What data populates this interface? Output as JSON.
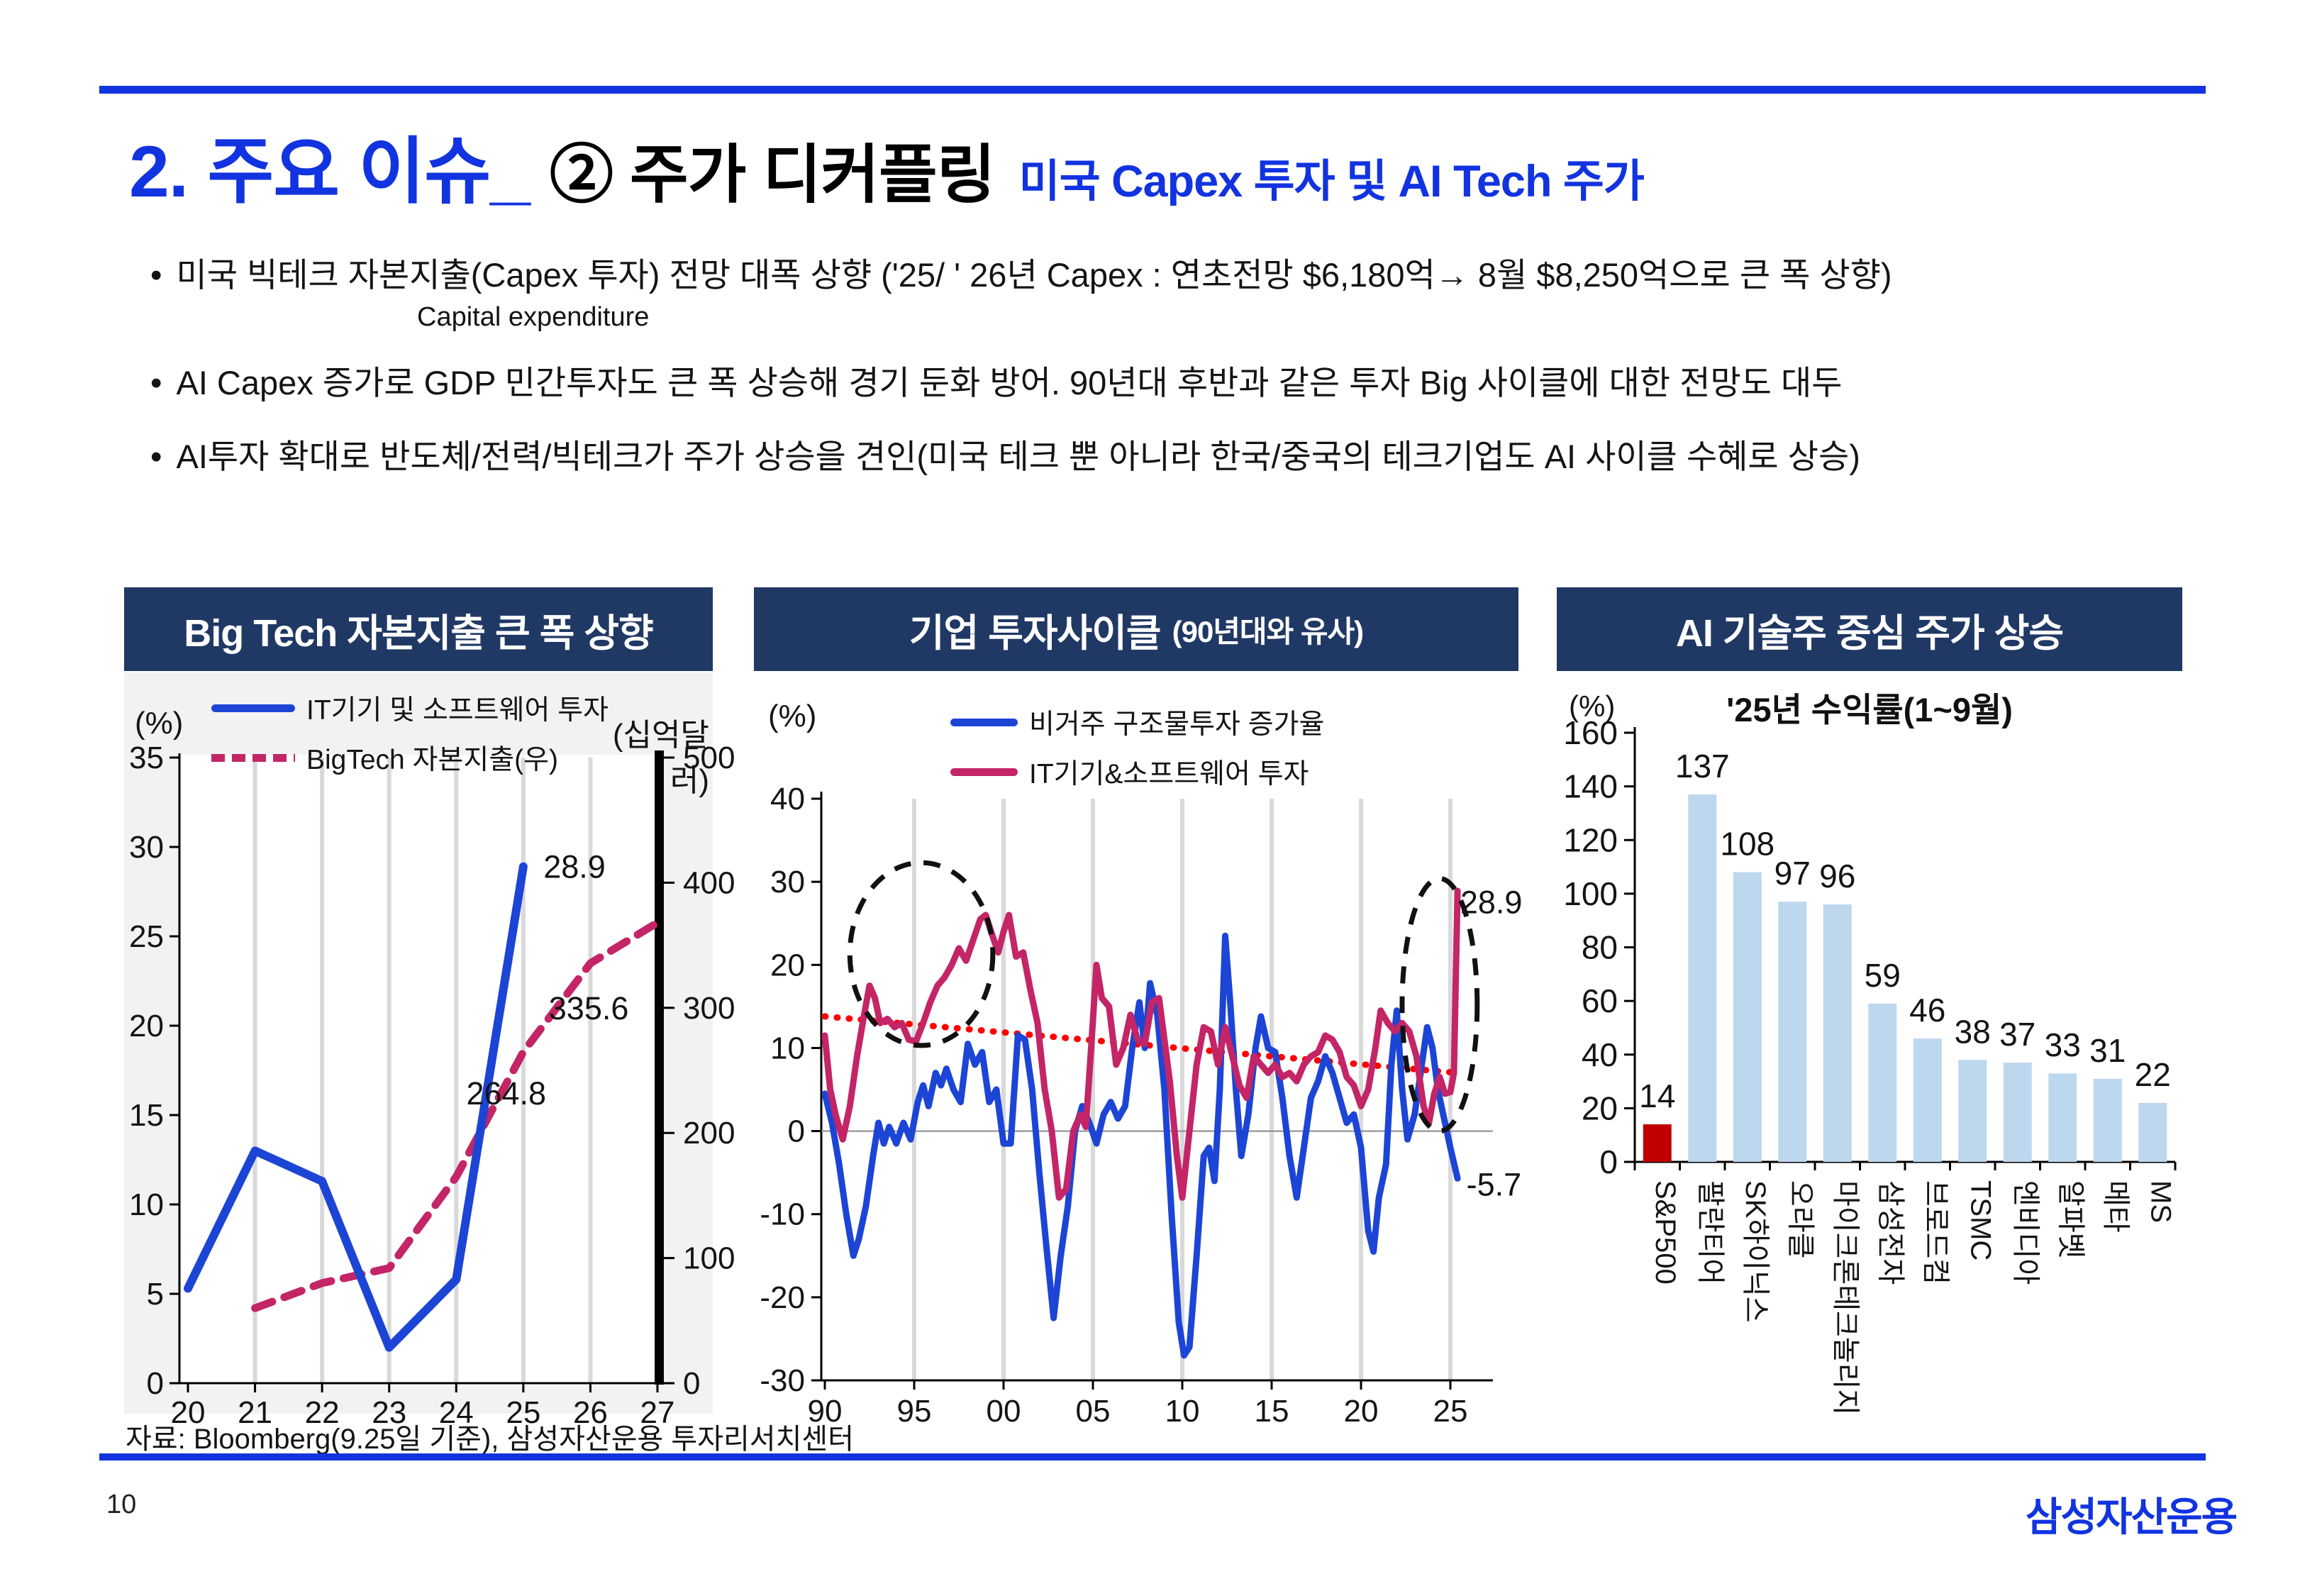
{
  "slide": {
    "title_main": "2. 주요 이슈_",
    "title_sub": "② 주가 디커플링",
    "title_note": "미국 Capex 투자  및 AI Tech 주가",
    "bullets": [
      "미국 빅테크 자본지출(Capex 투자) 전망 대폭 상향 ('25/ ' 26년 Capex : 연초전망 $6,180억→ 8월 $8,250억으로 큰 폭 상향)",
      "AI Capex 증가로 GDP 민간투자도 큰 폭 상승해 경기 둔화 방어. 90년대 후반과 같은 투자 Big 사이클에 대한 전망도 대두",
      "AI투자 확대로 반도체/전력/빅테크가 주가 상승을 견인(미국 테크 뿐 아니라 한국/중국의 테크기업도 AI 사이클 수혜로 상승)"
    ],
    "capex_note": "Capital expenditure",
    "source": "자료: Bloomberg(9.25일 기준), 삼성자산운용 투자리서치센터",
    "page_number": "10",
    "logo": "삼성자산운용"
  },
  "colors": {
    "accent_blue": "#1133e0",
    "header_navy": "#203864",
    "line_blue": "#1c45d6",
    "line_pink": "#c32566",
    "trend_red": "#ff0000",
    "bar_red": "#c00000",
    "bar_blue": "#bdd7ee",
    "gridline": "#d9d9d9",
    "panel_gray": "#f2f2f2"
  },
  "chart_data": [
    {
      "type": "line",
      "panel_title": "Big Tech 자본지출 큰 폭 상향",
      "left_axis_label": "(%)",
      "right_axis_label": "(십억달러)",
      "xlim": [
        20,
        27
      ],
      "x_tick_labels": [
        "20",
        "21",
        "22",
        "23",
        "24",
        "25",
        "26",
        "27"
      ],
      "x_tick_values": [
        20,
        21,
        22,
        23,
        24,
        25,
        26,
        27
      ],
      "gridline_x": [
        21,
        22,
        23,
        24,
        25,
        26
      ],
      "ylim_left": [
        0,
        35
      ],
      "yticks_left": [
        0,
        5,
        10,
        15,
        20,
        25,
        30,
        35
      ],
      "ylim_right": [
        0,
        500
      ],
      "yticks_right": [
        0,
        100,
        200,
        300,
        400,
        500
      ],
      "series": [
        {
          "name": "IT기기 및 소프트웨어 투자",
          "axis": "left",
          "style": "solid",
          "color": "#1c45d6",
          "points": [
            [
              20,
              5.3
            ],
            [
              21,
              13.0
            ],
            [
              22,
              11.3
            ],
            [
              23,
              2.0
            ],
            [
              24,
              5.8
            ],
            [
              25,
              28.9
            ]
          ]
        },
        {
          "name": "BigTech 자본지출(우)",
          "axis": "right",
          "style": "dashed",
          "color": "#c32566",
          "points": [
            [
              21,
              60
            ],
            [
              22,
              80
            ],
            [
              23,
              92
            ],
            [
              24,
              165
            ],
            [
              25,
              264.8
            ],
            [
              26,
              335.6
            ],
            [
              27,
              368
            ]
          ]
        }
      ],
      "annotations": [
        {
          "text": "28.9",
          "x": 25.3,
          "y": 28.9,
          "axis": "left"
        },
        {
          "text": "335.6",
          "x": 25.38,
          "y": 300,
          "axis": "right"
        },
        {
          "text": "264.8",
          "x": 24.15,
          "y": 232,
          "axis": "right"
        }
      ]
    },
    {
      "type": "line",
      "panel_title": "기업 투자사이클",
      "panel_title_sub": "(90년대와 유사)",
      "left_axis_label": "(%)",
      "xlim": [
        1990,
        2027.3
      ],
      "x_tick_labels": [
        "90",
        "95",
        "00",
        "05",
        "10",
        "15",
        "20",
        "25"
      ],
      "x_tick_values": [
        1990,
        1995,
        2000,
        2005,
        2010,
        2015,
        2020,
        2025
      ],
      "gridline_x": [
        1995,
        2000,
        2005,
        2010,
        2015,
        2020,
        2025
      ],
      "ylim": [
        -30,
        40
      ],
      "yticks": [
        -30,
        -20,
        -10,
        0,
        10,
        20,
        30,
        40
      ],
      "series": [
        {
          "name": "비거주 구조물투자 증가율",
          "color": "#1c45d6",
          "points": [
            [
              1990,
              4.5
            ],
            [
              1990.4,
              1
            ],
            [
              1990.8,
              -4
            ],
            [
              1991.2,
              -10
            ],
            [
              1991.6,
              -15
            ],
            [
              1991.9,
              -13
            ],
            [
              1992.3,
              -9
            ],
            [
              1992.7,
              -3
            ],
            [
              1993,
              1
            ],
            [
              1993.3,
              -1.5
            ],
            [
              1993.6,
              0.5
            ],
            [
              1994,
              -1.5
            ],
            [
              1994.4,
              1
            ],
            [
              1994.8,
              -1
            ],
            [
              1995.2,
              3.5
            ],
            [
              1995.5,
              5.5
            ],
            [
              1995.8,
              3
            ],
            [
              1996.2,
              7
            ],
            [
              1996.5,
              5.5
            ],
            [
              1996.8,
              7.5
            ],
            [
              1997.2,
              5
            ],
            [
              1997.6,
              3.5
            ],
            [
              1998,
              10.5
            ],
            [
              1998.4,
              8
            ],
            [
              1998.8,
              9.5
            ],
            [
              1999.2,
              3.5
            ],
            [
              1999.6,
              5
            ],
            [
              2000,
              -1.5
            ],
            [
              2000.4,
              -1.5
            ],
            [
              2000.8,
              11.5
            ],
            [
              2001.2,
              11
            ],
            [
              2001.6,
              5
            ],
            [
              2002,
              -5
            ],
            [
              2002.4,
              -14
            ],
            [
              2002.8,
              -22.5
            ],
            [
              2003.2,
              -15
            ],
            [
              2003.6,
              -9
            ],
            [
              2004,
              0
            ],
            [
              2004.4,
              3
            ],
            [
              2004.8,
              1
            ],
            [
              2005.2,
              -1.5
            ],
            [
              2005.6,
              2
            ],
            [
              2006,
              3.5
            ],
            [
              2006.4,
              1.5
            ],
            [
              2006.8,
              3
            ],
            [
              2007.2,
              10
            ],
            [
              2007.6,
              15.5
            ],
            [
              2007.9,
              10
            ],
            [
              2008.2,
              17.8
            ],
            [
              2008.6,
              14
            ],
            [
              2009,
              5
            ],
            [
              2009.4,
              -10
            ],
            [
              2009.8,
              -23
            ],
            [
              2010.1,
              -27
            ],
            [
              2010.4,
              -26
            ],
            [
              2010.8,
              -15
            ],
            [
              2011.2,
              -3
            ],
            [
              2011.5,
              -2
            ],
            [
              2011.8,
              -6
            ],
            [
              2012.1,
              5
            ],
            [
              2012.4,
              23.5
            ],
            [
              2012.7,
              15
            ],
            [
              2013,
              5
            ],
            [
              2013.3,
              -3
            ],
            [
              2013.7,
              2
            ],
            [
              2014.1,
              10
            ],
            [
              2014.4,
              13.8
            ],
            [
              2014.8,
              10
            ],
            [
              2015.2,
              9.5
            ],
            [
              2015.6,
              4
            ],
            [
              2016,
              -3
            ],
            [
              2016.4,
              -8
            ],
            [
              2016.8,
              -2
            ],
            [
              2017.2,
              4
            ],
            [
              2017.6,
              6
            ],
            [
              2018,
              9
            ],
            [
              2018.4,
              7
            ],
            [
              2018.8,
              4
            ],
            [
              2019.2,
              1
            ],
            [
              2019.6,
              2
            ],
            [
              2020,
              -2
            ],
            [
              2020.4,
              -12
            ],
            [
              2020.7,
              -14.5
            ],
            [
              2021,
              -8
            ],
            [
              2021.4,
              -4
            ],
            [
              2021.7,
              8
            ],
            [
              2022,
              14.5
            ],
            [
              2022.3,
              5
            ],
            [
              2022.6,
              -1
            ],
            [
              2023,
              2
            ],
            [
              2023.4,
              8
            ],
            [
              2023.7,
              12.5
            ],
            [
              2024,
              10
            ],
            [
              2024.3,
              5
            ],
            [
              2024.6,
              2
            ],
            [
              2025,
              -2
            ],
            [
              2025.4,
              -5.7
            ]
          ]
        },
        {
          "name": "IT기기&소프트웨어 투자",
          "color": "#c32566",
          "points": [
            [
              1990,
              11.5
            ],
            [
              1990.3,
              5
            ],
            [
              1990.6,
              2
            ],
            [
              1991,
              -1
            ],
            [
              1991.4,
              3
            ],
            [
              1991.8,
              9
            ],
            [
              1992.2,
              14
            ],
            [
              1992.5,
              17.5
            ],
            [
              1992.8,
              16
            ],
            [
              1993.1,
              13
            ],
            [
              1993.5,
              13.5
            ],
            [
              1993.9,
              12.5
            ],
            [
              1994.3,
              13
            ],
            [
              1994.7,
              11
            ],
            [
              1995.1,
              10.8
            ],
            [
              1995.5,
              13
            ],
            [
              1995.9,
              15.5
            ],
            [
              1996.3,
              17.5
            ],
            [
              1996.7,
              18.5
            ],
            [
              1997.1,
              20
            ],
            [
              1997.5,
              22
            ],
            [
              1997.9,
              20.5
            ],
            [
              1998.3,
              23
            ],
            [
              1998.7,
              25.5
            ],
            [
              1999,
              26
            ],
            [
              1999.3,
              24
            ],
            [
              1999.7,
              21.5
            ],
            [
              2000,
              24
            ],
            [
              2000.3,
              26
            ],
            [
              2000.7,
              21
            ],
            [
              2001.1,
              21.5
            ],
            [
              2001.5,
              17
            ],
            [
              2001.9,
              13
            ],
            [
              2002.3,
              5
            ],
            [
              2002.7,
              0
            ],
            [
              2003.1,
              -8
            ],
            [
              2003.5,
              -7
            ],
            [
              2003.9,
              0
            ],
            [
              2004.3,
              2
            ],
            [
              2004.6,
              0.5
            ],
            [
              2004.9,
              10
            ],
            [
              2005.2,
              20
            ],
            [
              2005.5,
              16
            ],
            [
              2005.9,
              15
            ],
            [
              2006.3,
              8
            ],
            [
              2006.7,
              10
            ],
            [
              2007.1,
              14
            ],
            [
              2007.5,
              11
            ],
            [
              2007.9,
              10.5
            ],
            [
              2008.3,
              15.5
            ],
            [
              2008.7,
              16
            ],
            [
              2009,
              11
            ],
            [
              2009.3,
              6
            ],
            [
              2009.7,
              -3
            ],
            [
              2010,
              -8
            ],
            [
              2010.4,
              0
            ],
            [
              2010.8,
              8
            ],
            [
              2011.2,
              12.5
            ],
            [
              2011.6,
              12
            ],
            [
              2012,
              8
            ],
            [
              2012.4,
              12.5
            ],
            [
              2012.8,
              9
            ],
            [
              2013.2,
              5.5
            ],
            [
              2013.6,
              4
            ],
            [
              2014,
              9
            ],
            [
              2014.4,
              8
            ],
            [
              2014.8,
              7
            ],
            [
              2015.2,
              8
            ],
            [
              2015.6,
              6.5
            ],
            [
              2016,
              7
            ],
            [
              2016.4,
              6
            ],
            [
              2016.8,
              8
            ],
            [
              2017.2,
              9
            ],
            [
              2017.6,
              9.5
            ],
            [
              2018,
              11.5
            ],
            [
              2018.4,
              11
            ],
            [
              2018.8,
              9.5
            ],
            [
              2019.2,
              6.5
            ],
            [
              2019.6,
              5.5
            ],
            [
              2020,
              3
            ],
            [
              2020.4,
              5
            ],
            [
              2020.8,
              10
            ],
            [
              2021.1,
              14.5
            ],
            [
              2021.5,
              13
            ],
            [
              2021.9,
              12
            ],
            [
              2022.3,
              13
            ],
            [
              2022.7,
              12
            ],
            [
              2023.1,
              9
            ],
            [
              2023.5,
              3
            ],
            [
              2023.8,
              1
            ],
            [
              2024.1,
              4.5
            ],
            [
              2024.4,
              6.5
            ],
            [
              2024.7,
              4.5
            ],
            [
              2025,
              4.7
            ],
            [
              2025.2,
              7
            ],
            [
              2025.4,
              28.9
            ]
          ]
        }
      ],
      "trendline": {
        "x1": 1990,
        "y1": 13.8,
        "x2": 2025.4,
        "y2": 7.0,
        "color": "#ff0000"
      },
      "ellipses": [
        {
          "cx": 1995.4,
          "cy": 21.3,
          "rx": 4.0,
          "ry": 11.0
        },
        {
          "cx": 2024.4,
          "cy": 15.2,
          "rx": 2.1,
          "ry": 15.2
        }
      ],
      "annotations": [
        {
          "text": "28.9",
          "x": 2025.55,
          "y": 27.5
        },
        {
          "text": "-5.7",
          "x": 2025.9,
          "y": -6.5
        }
      ]
    },
    {
      "type": "bar",
      "panel_title": "AI 기술주 중심 주가 상승",
      "title": "'25년 수익률(1~9월)",
      "left_axis_label": "(%)",
      "categories": [
        "S&P500",
        "팔란티어",
        "SK하이닉스",
        "오라클",
        "마이크론테크놀리지",
        "삼성전자",
        "브로드컴",
        "TSMC",
        "엔비디아",
        "알파벳",
        "메타",
        "MS"
      ],
      "values": [
        14,
        137,
        108,
        97,
        96,
        59,
        46,
        38,
        37,
        33,
        31,
        22
      ],
      "highlight_index": 0,
      "highlight_color": "#c00000",
      "bar_color": "#bdd7ee",
      "ylim": [
        0,
        160
      ],
      "yticks": [
        0,
        20,
        40,
        60,
        80,
        100,
        120,
        140,
        160
      ]
    }
  ]
}
